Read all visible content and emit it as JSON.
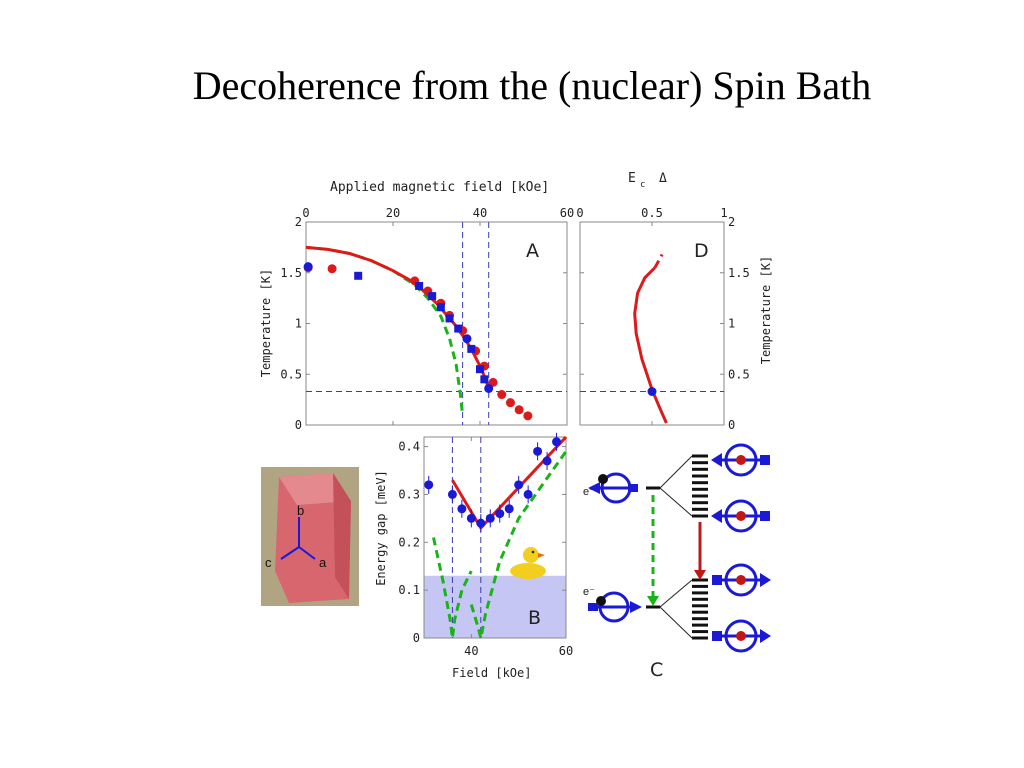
{
  "slide": {
    "title": "Decoherence from the (nuclear) Spin Bath"
  },
  "photo": {
    "axis_labels": [
      "b",
      "c",
      "a"
    ]
  },
  "colors": {
    "red": "#dc1a1a",
    "blue": "#1a1ad6",
    "green": "#18b418",
    "shade": "#c6c6f4",
    "photo_bg": "#b1a483",
    "crystal": "#d8666f"
  },
  "chart_data": [
    {
      "panel": "A",
      "type": "scatter",
      "top_axis_label": "Applied magnetic field [kOe]",
      "top_axis_extra": [
        "E",
        "c",
        "Δ"
      ],
      "x_ticks": [
        "0",
        "20",
        "40",
        "60"
      ],
      "xlim": [
        0,
        60
      ],
      "ylabel": "Temperature [K]",
      "y_ticks": [
        "0",
        "0.5",
        "1",
        "1.5",
        "2"
      ],
      "ylim": [
        0,
        2
      ],
      "dashed_hline_y": 0.33,
      "dashed_vlines_x": [
        36,
        42
      ],
      "series": [
        {
          "color": "red",
          "marker": "circle",
          "x": [
            0.5,
            6,
            25,
            28,
            31,
            33,
            36,
            39,
            41,
            43,
            45,
            47,
            49,
            51
          ],
          "y": [
            1.55,
            1.54,
            1.42,
            1.32,
            1.2,
            1.08,
            0.93,
            0.73,
            0.58,
            0.42,
            0.3,
            0.22,
            0.15,
            0.09
          ]
        },
        {
          "color": "blue",
          "marker": "circle",
          "x": [
            0.5,
            37,
            42
          ],
          "y": [
            1.56,
            0.85,
            0.36
          ]
        },
        {
          "color": "blue",
          "marker": "square",
          "x": [
            12,
            26,
            29,
            31,
            33,
            35,
            38,
            40,
            41
          ],
          "y": [
            1.47,
            1.37,
            1.27,
            1.16,
            1.05,
            0.95,
            0.75,
            0.55,
            0.45
          ]
        },
        {
          "color": "green",
          "style": "dashed",
          "x": [
            0,
            5,
            10,
            15,
            20,
            25,
            28,
            31,
            33,
            34.5,
            35.5,
            36
          ],
          "y": [
            1.75,
            1.73,
            1.69,
            1.62,
            1.52,
            1.38,
            1.25,
            1.07,
            0.85,
            0.6,
            0.3,
            0.1
          ]
        },
        {
          "color": "red",
          "style": "solid",
          "x": [
            0,
            5,
            10,
            15,
            20,
            25,
            30,
            35,
            38,
            40,
            41,
            42
          ],
          "y": [
            1.75,
            1.73,
            1.69,
            1.62,
            1.52,
            1.4,
            1.2,
            0.95,
            0.75,
            0.58,
            0.48,
            0.36
          ]
        }
      ]
    },
    {
      "panel": "D",
      "type": "line",
      "x_ticks": [
        "0",
        "0.5",
        "1"
      ],
      "xlim": [
        0,
        1
      ],
      "ylabel": "Temperature [K]",
      "y_ticks": [
        "0",
        "0.5",
        "1",
        "1.5",
        "2"
      ],
      "ylim": [
        0,
        2
      ],
      "dashed_hline_y": 0.33,
      "series": [
        {
          "color": "red",
          "style": "solid",
          "x": [
            0.52,
            0.45,
            0.4,
            0.38,
            0.39,
            0.43,
            0.5,
            0.55,
            0.6
          ],
          "y": [
            1.55,
            1.45,
            1.3,
            1.1,
            0.9,
            0.65,
            0.35,
            0.18,
            0.02
          ]
        },
        {
          "color": "red",
          "style": "dashed",
          "x": [
            0.52,
            0.57
          ],
          "y": [
            1.55,
            1.68
          ]
        },
        {
          "color": "blue",
          "marker": "circle",
          "x": [
            0.5
          ],
          "y": [
            0.33
          ]
        }
      ]
    },
    {
      "panel": "B",
      "type": "scatter",
      "xlabel": "Field [kOe]",
      "x_ticks": [
        "40",
        "60"
      ],
      "xlim": [
        30,
        60
      ],
      "ylabel": "Energy gap [meV]",
      "y_ticks": [
        "0",
        "0.1",
        "0.2",
        "0.3",
        "0.4"
      ],
      "ylim": [
        0,
        0.42
      ],
      "shaded_below_y": 0.13,
      "dashed_vlines_x": [
        36,
        42
      ],
      "series": [
        {
          "color": "blue",
          "marker": "circle",
          "error_bars": true,
          "x": [
            31,
            36,
            38,
            40,
            42,
            44,
            46,
            48,
            50,
            52,
            54,
            56,
            58
          ],
          "y": [
            0.32,
            0.3,
            0.27,
            0.25,
            0.24,
            0.25,
            0.26,
            0.27,
            0.32,
            0.3,
            0.39,
            0.37,
            0.41
          ]
        },
        {
          "color": "red",
          "style": "solid",
          "x": [
            36,
            42,
            60
          ],
          "y": [
            0.33,
            0.23,
            0.42
          ]
        },
        {
          "color": "green",
          "style": "dashed",
          "x": [
            32,
            34,
            35.5,
            36,
            36.5,
            38,
            40
          ],
          "y": [
            0.21,
            0.12,
            0.04,
            0.0,
            0.04,
            0.1,
            0.14
          ]
        },
        {
          "color": "green",
          "style": "dashed",
          "x": [
            40,
            41.5,
            42,
            43,
            46,
            50,
            55,
            60
          ],
          "y": [
            0.07,
            0.02,
            0.0,
            0.05,
            0.16,
            0.25,
            0.32,
            0.39
          ]
        }
      ]
    },
    {
      "panel": "C",
      "type": "diagram",
      "electron_label": "e⁻",
      "levels": 2
    }
  ]
}
